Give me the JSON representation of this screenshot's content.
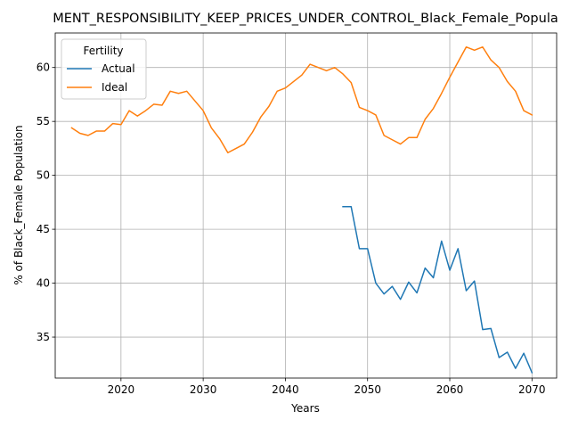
{
  "chart_data": {
    "type": "line",
    "title": "MENT_RESPONSIBILITY_KEEP_PRICES_UNDER_CONTROL_Black_Female_Popula",
    "xlabel": "Years",
    "ylabel": "% of Black_Female Population",
    "xlim": [
      2012,
      2073
    ],
    "ylim": [
      31.2,
      63.2
    ],
    "xticks": [
      2020,
      2030,
      2040,
      2050,
      2060,
      2070
    ],
    "yticks": [
      35,
      40,
      45,
      50,
      55,
      60
    ],
    "grid": true,
    "legend": {
      "title": "Fertility",
      "placement": "top-left"
    },
    "series": [
      {
        "name": "Actual",
        "color": "#1f77b4",
        "x": [
          2047,
          2048,
          2049,
          2050,
          2051,
          2052,
          2053,
          2054,
          2055,
          2056,
          2057,
          2058,
          2059,
          2060,
          2061,
          2062,
          2063,
          2064,
          2065,
          2066,
          2067,
          2068,
          2069,
          2070
        ],
        "y": [
          47.1,
          47.1,
          43.2,
          43.2,
          40.0,
          39.0,
          39.7,
          38.5,
          40.1,
          39.1,
          41.4,
          40.5,
          43.9,
          41.2,
          43.2,
          39.3,
          40.2,
          35.7,
          35.8,
          33.1,
          33.6,
          32.1,
          33.5,
          31.7
        ]
      },
      {
        "name": "Ideal",
        "color": "#ff7f0e",
        "x": [
          2014,
          2015,
          2016,
          2017,
          2018,
          2019,
          2020,
          2021,
          2022,
          2023,
          2024,
          2025,
          2026,
          2027,
          2028,
          2029,
          2030,
          2031,
          2032,
          2033,
          2034,
          2035,
          2036,
          2037,
          2038,
          2039,
          2040,
          2041,
          2042,
          2043,
          2044,
          2045,
          2046,
          2047,
          2048,
          2049,
          2050,
          2051,
          2052,
          2053,
          2054,
          2055,
          2056,
          2057,
          2058,
          2059,
          2060,
          2061,
          2062,
          2063,
          2064,
          2065,
          2066,
          2067,
          2068,
          2069,
          2070
        ],
        "y": [
          54.4,
          53.9,
          53.7,
          54.1,
          54.1,
          54.8,
          54.7,
          56.0,
          55.5,
          56.0,
          56.6,
          56.5,
          57.8,
          57.6,
          57.8,
          56.9,
          56.0,
          54.4,
          53.4,
          52.1,
          52.5,
          52.9,
          54.0,
          55.4,
          56.4,
          57.8,
          58.1,
          58.7,
          59.3,
          60.3,
          60.0,
          59.7,
          60.0,
          59.4,
          58.6,
          56.3,
          56.0,
          55.6,
          53.7,
          53.3,
          52.9,
          53.5,
          53.5,
          55.2,
          56.2,
          57.6,
          59.1,
          60.5,
          61.9,
          61.6,
          61.9,
          60.7,
          60.0,
          58.7,
          57.8,
          56.0,
          55.6
        ]
      }
    ]
  }
}
